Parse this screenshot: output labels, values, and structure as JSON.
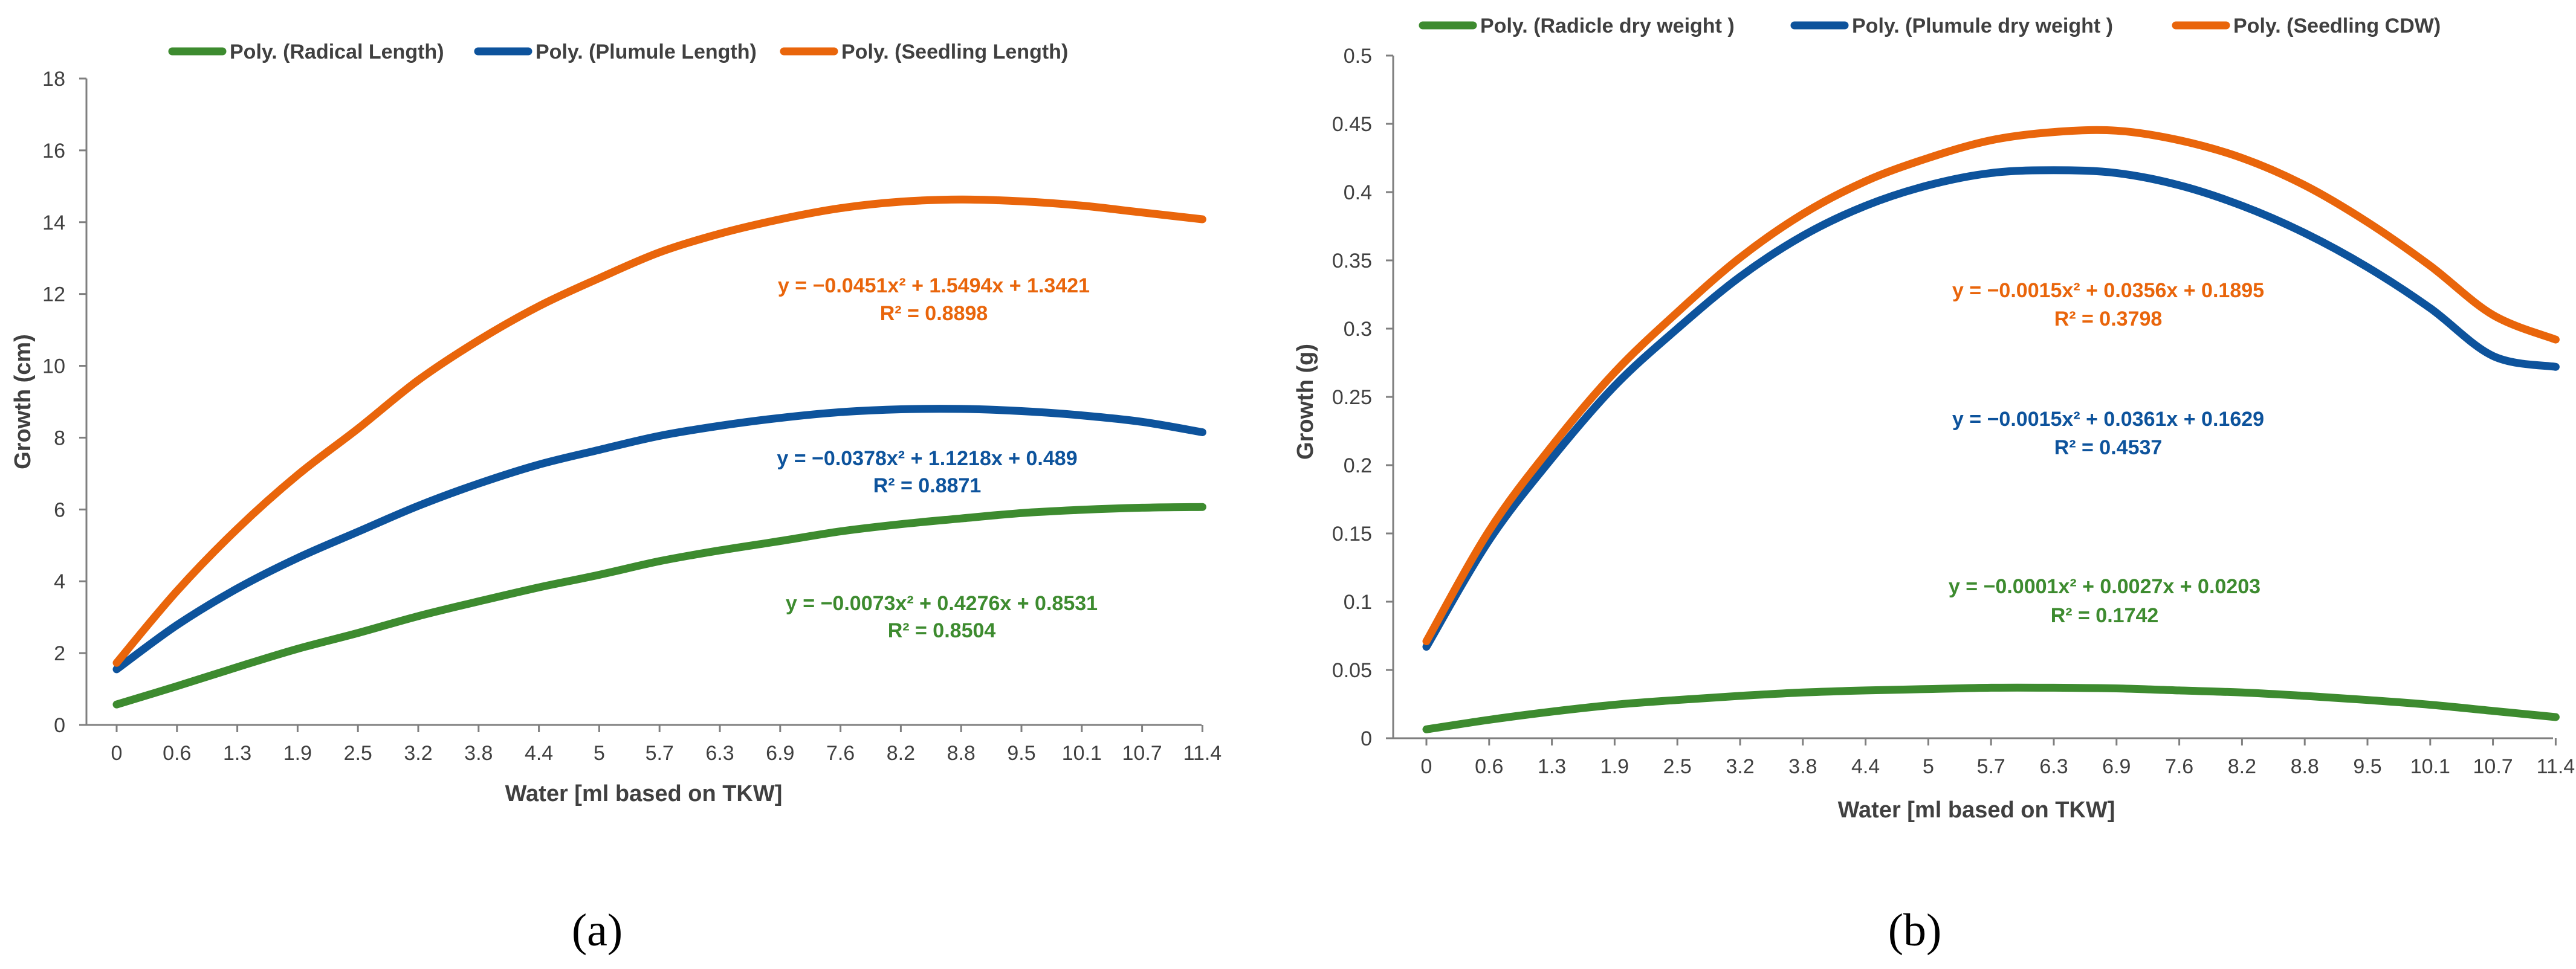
{
  "chart_data": [
    {
      "id": "a",
      "type": "line",
      "panel_label": "(a)",
      "xlabel": "Water [ml based on TKW]",
      "ylabel": "Growth (cm)",
      "ylim": [
        0,
        18
      ],
      "yticks": [
        0,
        2,
        4,
        6,
        8,
        10,
        12,
        14,
        16,
        18
      ],
      "ytick_labels": [
        "0",
        "2",
        "4",
        "6",
        "8",
        "10",
        "12",
        "14",
        "16",
        "18"
      ],
      "categories": [
        "0",
        "0.6",
        "1.3",
        "1.9",
        "2.5",
        "3.2",
        "3.8",
        "4.4",
        "5",
        "5.7",
        "6.3",
        "6.9",
        "7.6",
        "8.2",
        "8.8",
        "9.5",
        "10.1",
        "10.7",
        "11.4"
      ],
      "legend_position": "top",
      "grid": false,
      "series": [
        {
          "name": "Poly. (Radical Length)",
          "color": "#3d8b2f",
          "values": [
            0.57,
            1.08,
            1.61,
            2.12,
            2.56,
            3.03,
            3.44,
            3.83,
            4.18,
            4.56,
            4.86,
            5.12,
            5.39,
            5.59,
            5.75,
            5.9,
            5.99,
            6.05,
            6.07
          ],
          "equation": "y = −0.0073x² + 0.4276x + 0.8531",
          "r2": "R² = 0.8504"
        },
        {
          "name": "Poly. (Plumule Length)",
          "color": "#0d539c",
          "values": [
            1.55,
            2.78,
            3.8,
            4.65,
            5.38,
            6.1,
            6.72,
            7.25,
            7.66,
            8.05,
            8.33,
            8.55,
            8.71,
            8.79,
            8.8,
            8.74,
            8.62,
            8.44,
            8.15
          ],
          "equation": "y = −0.0378x² + 1.1218x + 0.489",
          "r2": "R² = 0.8871"
        },
        {
          "name": "Poly. (Seedling Length)",
          "color": "#e9650b",
          "values": [
            1.73,
            3.73,
            5.46,
            6.96,
            8.25,
            9.6,
            10.71,
            11.66,
            12.44,
            13.16,
            13.68,
            14.08,
            14.39,
            14.57,
            14.63,
            14.58,
            14.46,
            14.27,
            14.08
          ],
          "equation": "y = −0.0451x² + 1.5494x + 1.3421",
          "r2": "R² = 0.8898"
        }
      ]
    },
    {
      "id": "b",
      "type": "line",
      "panel_label": "(b)",
      "xlabel": "Water [ml based on TKW]",
      "ylabel": "Growth (g)",
      "ylim": [
        0,
        0.5
      ],
      "yticks": [
        0,
        0.05,
        0.1,
        0.15,
        0.2,
        0.25,
        0.3,
        0.35,
        0.4,
        0.45,
        0.5
      ],
      "ytick_labels": [
        "0",
        "0.05",
        "0.1",
        "0.15",
        "0.2",
        "0.25",
        "0.3",
        "0.35",
        "0.4",
        "0.45",
        "0.5"
      ],
      "categories": [
        "0",
        "0.6",
        "1.3",
        "1.9",
        "2.5",
        "3.2",
        "3.8",
        "4.4",
        "5",
        "5.7",
        "6.3",
        "6.9",
        "7.6",
        "8.2",
        "8.8",
        "9.5",
        "10.1",
        "10.7",
        "11.4"
      ],
      "legend_position": "top",
      "grid": false,
      "series": [
        {
          "name": "Poly. (Radicle dry weight )",
          "color": "#3d8b2f",
          "values": [
            0.0065,
            0.0135,
            0.0195,
            0.0245,
            0.028,
            0.031,
            0.0335,
            0.035,
            0.036,
            0.037,
            0.037,
            0.0365,
            0.035,
            0.0335,
            0.031,
            0.028,
            0.0245,
            0.02,
            0.0155
          ],
          "equation": "y = −0.0001x² + 0.0027x + 0.0203",
          "r2": "R² = 0.1742"
        },
        {
          "name": "Poly. (Plumule dry weight )",
          "color": "#0d539c",
          "values": [
            0.067,
            0.145,
            0.205,
            0.258,
            0.3,
            0.338,
            0.368,
            0.39,
            0.405,
            0.414,
            0.416,
            0.414,
            0.405,
            0.39,
            0.37,
            0.345,
            0.315,
            0.28,
            0.272
          ],
          "equation": "y = −0.0015x² + 0.0361x + 0.1629",
          "r2": "R² = 0.4537"
        },
        {
          "name": "Poly. (Seedling CDW)",
          "color": "#e9650b",
          "values": [
            0.071,
            0.152,
            0.214,
            0.268,
            0.312,
            0.352,
            0.384,
            0.408,
            0.425,
            0.438,
            0.444,
            0.445,
            0.438,
            0.425,
            0.405,
            0.378,
            0.346,
            0.31,
            0.292
          ],
          "equation": "y = −0.0015x² + 0.0356x + 0.1895",
          "r2": "R² = 0.3798"
        }
      ]
    }
  ]
}
